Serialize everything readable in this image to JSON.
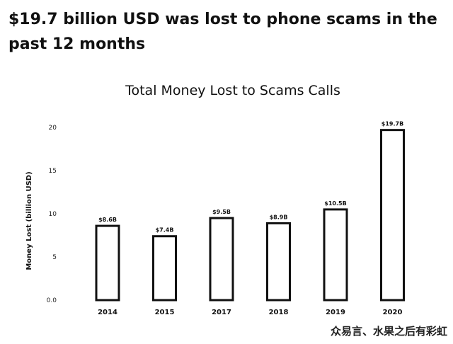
{
  "headline": "$19.7 billion USD was lost to phone scams in the past 12 months",
  "watermark": "众易言、水果之后有彩虹",
  "colors": {
    "bar_outline": "#111111",
    "bar_fill": "#ffffff"
  },
  "chart_data": {
    "type": "bar",
    "title": "Total Money Lost to Scams Calls",
    "xlabel": "",
    "ylabel": "Money Lost (billion USD)",
    "ylim": [
      0,
      20
    ],
    "yticks": [
      "0.0",
      "5",
      "10",
      "15",
      "20"
    ],
    "categories": [
      "2014",
      "2015",
      "2017",
      "2018",
      "2019",
      "2020"
    ],
    "values": [
      8.6,
      7.4,
      9.5,
      8.9,
      10.5,
      19.7
    ],
    "data_labels": [
      "$8.6B",
      "$7.4B",
      "$9.5B",
      "$8.9B",
      "$10.5B",
      "$19.7B"
    ],
    "legend": "none",
    "grid": false
  }
}
